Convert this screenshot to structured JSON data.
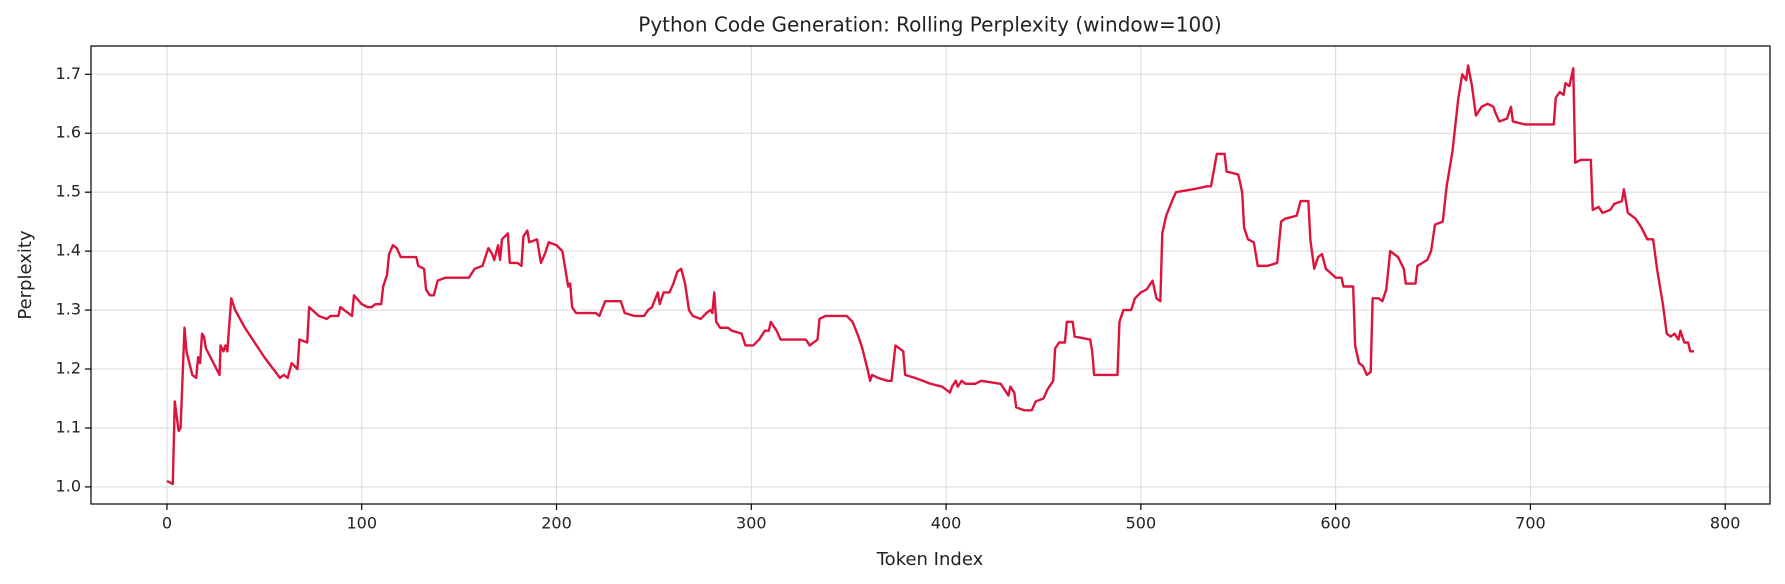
{
  "chart_data": {
    "type": "line",
    "title": "Python Code Generation: Rolling Perplexity (window=100)",
    "xlabel": "Token Index",
    "ylabel": "Perplexity",
    "grid": true,
    "xlim": [
      -39,
      823
    ],
    "ylim": [
      0.971,
      1.748
    ],
    "xticks": [
      0,
      100,
      200,
      300,
      400,
      500,
      600,
      700,
      800
    ],
    "yticks": [
      {
        "value": 1,
        "label": "1.0"
      },
      1.1,
      1.2,
      1.3,
      1.4,
      1.5,
      1.6,
      1.7
    ],
    "series": [
      {
        "name": "Rolling Perplexity",
        "color": "#dc143c",
        "x": [
          0,
          3,
          4,
          6,
          7,
          9,
          10,
          13,
          15,
          16,
          17,
          18,
          19,
          20,
          27,
          27.5,
          29,
          30,
          31,
          33,
          35,
          40,
          50,
          58,
          60,
          62,
          64,
          67,
          68,
          72,
          73,
          78,
          82,
          84,
          88,
          89,
          95,
          96,
          100,
          103,
          105,
          107,
          110,
          111,
          113,
          114,
          116,
          118,
          120,
          128,
          129,
          132,
          133,
          135,
          137,
          139,
          143,
          155,
          158,
          162,
          165,
          167,
          168,
          170,
          171,
          172,
          175,
          176,
          180,
          182,
          183,
          185,
          186,
          190,
          192,
          194,
          196,
          200,
          203,
          205,
          206,
          207,
          208,
          210,
          220,
          222,
          225,
          233,
          235,
          240,
          245,
          247,
          249,
          252,
          253,
          255,
          258,
          260,
          262,
          264,
          266,
          268,
          270,
          274,
          277,
          279,
          280,
          281,
          282,
          284,
          288,
          290,
          295,
          297,
          301,
          304,
          307,
          309,
          310,
          313,
          315,
          328,
          330,
          334,
          335,
          338,
          349,
          352,
          355,
          357,
          360,
          361,
          362,
          365,
          370,
          372,
          374,
          378,
          379,
          384,
          388,
          392,
          398,
          402,
          403,
          405,
          406,
          408,
          410,
          415,
          418,
          428,
          430,
          432,
          433,
          435,
          436,
          440,
          444,
          446,
          450,
          452,
          455,
          456,
          458,
          461,
          462,
          465,
          466,
          474,
          475,
          476,
          488,
          489,
          491,
          495,
          497,
          500,
          503,
          506,
          508,
          510,
          511,
          513,
          516,
          518,
          527,
          534,
          536,
          539,
          543,
          544,
          550,
          552,
          553,
          555,
          558,
          560,
          565,
          570,
          572,
          574,
          580,
          582,
          586,
          587,
          589,
          591,
          593,
          595,
          600,
          603,
          604,
          609,
          610,
          612,
          614,
          616,
          618,
          619,
          622,
          624,
          626,
          628,
          632,
          635,
          636,
          641,
          642,
          647,
          649,
          651,
          655,
          657,
          660,
          663,
          665,
          667,
          668,
          670,
          672,
          675,
          678,
          681,
          682,
          684,
          688,
          690,
          691,
          697,
          712,
          713,
          715,
          717,
          718,
          720,
          722,
          723,
          726,
          731,
          732,
          735,
          737,
          741,
          743,
          747,
          748,
          750,
          752,
          754,
          757,
          760,
          763,
          765,
          768,
          770,
          772,
          774,
          776,
          777,
          779,
          781,
          782,
          784
        ],
        "values": [
          1.01,
          1.005,
          1.145,
          1.095,
          1.1,
          1.27,
          1.23,
          1.19,
          1.185,
          1.22,
          1.21,
          1.26,
          1.255,
          1.235,
          1.19,
          1.24,
          1.23,
          1.24,
          1.23,
          1.32,
          1.3,
          1.27,
          1.22,
          1.185,
          1.19,
          1.185,
          1.21,
          1.2,
          1.25,
          1.245,
          1.305,
          1.29,
          1.285,
          1.29,
          1.29,
          1.305,
          1.29,
          1.325,
          1.31,
          1.305,
          1.305,
          1.31,
          1.31,
          1.34,
          1.36,
          1.395,
          1.41,
          1.405,
          1.39,
          1.39,
          1.375,
          1.37,
          1.335,
          1.325,
          1.325,
          1.35,
          1.355,
          1.355,
          1.37,
          1.375,
          1.405,
          1.395,
          1.385,
          1.41,
          1.385,
          1.42,
          1.43,
          1.38,
          1.38,
          1.375,
          1.425,
          1.435,
          1.415,
          1.42,
          1.38,
          1.395,
          1.415,
          1.41,
          1.4,
          1.36,
          1.34,
          1.345,
          1.305,
          1.295,
          1.295,
          1.29,
          1.315,
          1.315,
          1.295,
          1.29,
          1.29,
          1.3,
          1.305,
          1.33,
          1.31,
          1.33,
          1.33,
          1.345,
          1.365,
          1.37,
          1.345,
          1.3,
          1.29,
          1.285,
          1.295,
          1.3,
          1.295,
          1.33,
          1.28,
          1.27,
          1.27,
          1.265,
          1.26,
          1.24,
          1.24,
          1.25,
          1.265,
          1.265,
          1.28,
          1.265,
          1.25,
          1.25,
          1.24,
          1.25,
          1.285,
          1.29,
          1.29,
          1.28,
          1.255,
          1.235,
          1.195,
          1.18,
          1.19,
          1.185,
          1.18,
          1.18,
          1.24,
          1.23,
          1.19,
          1.185,
          1.18,
          1.175,
          1.17,
          1.16,
          1.17,
          1.18,
          1.17,
          1.18,
          1.175,
          1.175,
          1.18,
          1.175,
          1.165,
          1.155,
          1.17,
          1.16,
          1.135,
          1.13,
          1.13,
          1.145,
          1.15,
          1.165,
          1.18,
          1.235,
          1.245,
          1.245,
          1.28,
          1.28,
          1.255,
          1.25,
          1.23,
          1.19,
          1.19,
          1.28,
          1.3,
          1.3,
          1.32,
          1.33,
          1.335,
          1.35,
          1.32,
          1.315,
          1.43,
          1.46,
          1.485,
          1.5,
          1.505,
          1.51,
          1.51,
          1.565,
          1.565,
          1.535,
          1.53,
          1.5,
          1.44,
          1.42,
          1.415,
          1.375,
          1.375,
          1.38,
          1.45,
          1.455,
          1.46,
          1.485,
          1.485,
          1.42,
          1.37,
          1.39,
          1.395,
          1.37,
          1.355,
          1.355,
          1.34,
          1.34,
          1.24,
          1.21,
          1.205,
          1.19,
          1.195,
          1.32,
          1.32,
          1.315,
          1.335,
          1.4,
          1.39,
          1.37,
          1.345,
          1.345,
          1.375,
          1.385,
          1.4,
          1.445,
          1.45,
          1.51,
          1.57,
          1.66,
          1.7,
          1.69,
          1.715,
          1.68,
          1.63,
          1.645,
          1.65,
          1.645,
          1.635,
          1.62,
          1.625,
          1.645,
          1.62,
          1.615,
          1.615,
          1.66,
          1.67,
          1.665,
          1.685,
          1.68,
          1.71,
          1.55,
          1.555,
          1.555,
          1.47,
          1.475,
          1.465,
          1.47,
          1.48,
          1.485,
          1.505,
          1.465,
          1.46,
          1.455,
          1.44,
          1.42,
          1.42,
          1.37,
          1.31,
          1.26,
          1.255,
          1.26,
          1.25,
          1.265,
          1.245,
          1.245,
          1.23,
          1.23
        ]
      }
    ]
  }
}
